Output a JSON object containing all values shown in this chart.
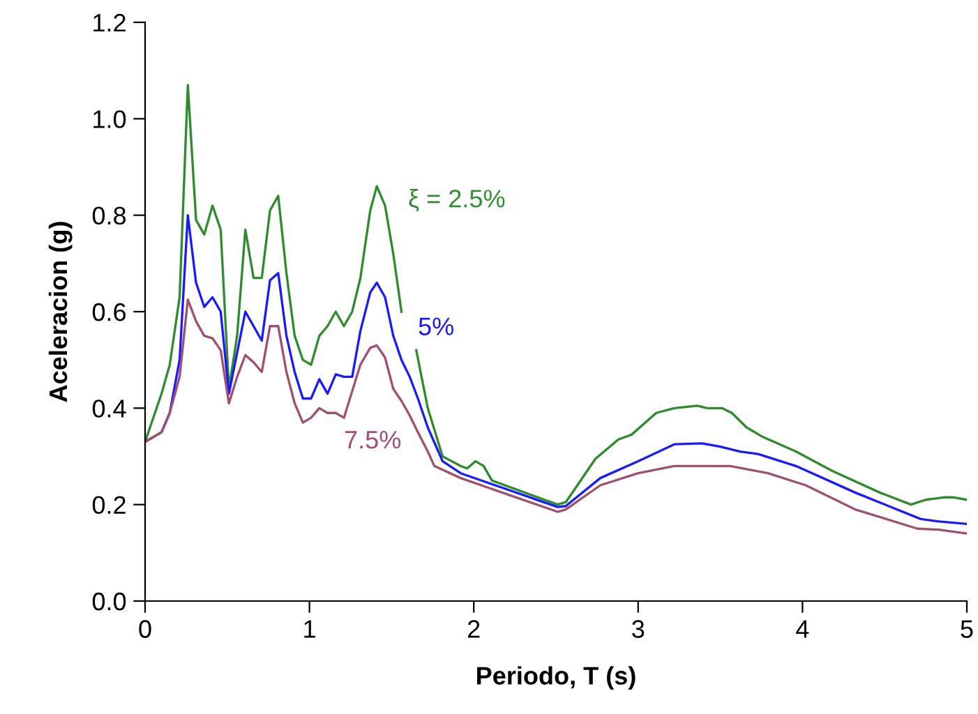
{
  "chart_data": {
    "type": "line",
    "xlabel": "Periodo, T (s)",
    "ylabel": "Aceleracion (g)",
    "xlim": [
      0,
      5
    ],
    "ylim": [
      0,
      1.2
    ],
    "xticks": [
      0,
      1,
      2,
      3,
      4,
      5
    ],
    "yticks": [
      {
        "value": 0,
        "label": "0.0"
      },
      {
        "value": 0.2,
        "label": "0.2"
      },
      {
        "value": 0.4,
        "label": "0.4"
      },
      {
        "value": 0.6,
        "label": "0.6"
      },
      {
        "value": 0.8,
        "label": "0.8"
      },
      {
        "value": 1.0,
        "label": "1.0"
      },
      {
        "value": 1.2,
        "label": "1.2"
      }
    ],
    "grid": false,
    "legend": false,
    "marker": "none",
    "line_style": "solid",
    "series": [
      {
        "name": "ξ = 2.5%",
        "color": "#2e8b2e",
        "x": [
          0,
          0.1,
          0.15,
          0.21,
          0.26,
          0.31,
          0.36,
          0.41,
          0.46,
          0.51,
          0.56,
          0.61,
          0.66,
          0.71,
          0.76,
          0.81,
          0.86,
          0.91,
          0.96,
          1.01,
          1.06,
          1.11,
          1.16,
          1.21,
          1.26,
          1.31,
          1.37,
          1.41,
          1.46,
          1.51,
          1.56,
          1.6,
          1.65,
          1.72,
          1.81,
          1.92,
          1.96,
          2.01,
          2.06,
          2.11,
          2.51,
          2.56,
          2.74,
          2.88,
          2.96,
          3.11,
          3.22,
          3.36,
          3.42,
          3.51,
          3.57,
          3.66,
          3.76,
          3.96,
          4.18,
          4.47,
          4.66,
          4.75,
          4.86,
          4.92,
          5.0
        ],
        "values": [
          0.33,
          0.43,
          0.49,
          0.63,
          1.07,
          0.79,
          0.76,
          0.82,
          0.77,
          0.44,
          0.55,
          0.77,
          0.67,
          0.67,
          0.81,
          0.84,
          0.68,
          0.55,
          0.5,
          0.49,
          0.55,
          0.57,
          0.6,
          0.57,
          0.6,
          0.67,
          0.81,
          0.86,
          0.82,
          0.72,
          0.6,
          null,
          0.52,
          0.4,
          0.3,
          0.28,
          0.275,
          0.29,
          0.28,
          0.25,
          0.2,
          0.205,
          0.295,
          0.335,
          0.345,
          0.39,
          0.4,
          0.405,
          0.4,
          0.4,
          0.39,
          0.36,
          0.34,
          0.31,
          0.27,
          0.225,
          0.2,
          0.21,
          0.215,
          0.215,
          0.21
        ]
      },
      {
        "name": "5%",
        "color": "#1a1aff",
        "x": [
          0,
          0.1,
          0.15,
          0.21,
          0.26,
          0.31,
          0.36,
          0.41,
          0.46,
          0.51,
          0.56,
          0.61,
          0.66,
          0.71,
          0.76,
          0.81,
          0.86,
          0.91,
          0.96,
          1.01,
          1.06,
          1.11,
          1.16,
          1.21,
          1.26,
          1.31,
          1.37,
          1.41,
          1.46,
          1.51,
          1.56,
          1.61,
          1.66,
          1.72,
          1.81,
          1.92,
          2.51,
          2.56,
          2.77,
          3.0,
          3.22,
          3.39,
          3.5,
          3.62,
          3.73,
          3.96,
          4.32,
          4.72,
          4.83,
          5.0
        ],
        "values": [
          0.33,
          0.35,
          0.39,
          0.5,
          0.8,
          0.66,
          0.61,
          0.63,
          0.6,
          0.43,
          0.515,
          0.6,
          0.57,
          0.54,
          0.665,
          0.68,
          0.55,
          0.475,
          0.42,
          0.42,
          0.46,
          0.43,
          0.47,
          0.465,
          0.465,
          0.56,
          0.64,
          0.66,
          0.63,
          0.55,
          0.5,
          0.465,
          0.42,
          0.36,
          0.29,
          0.265,
          0.195,
          0.197,
          0.255,
          0.29,
          0.325,
          0.327,
          0.32,
          0.31,
          0.305,
          0.28,
          0.225,
          0.17,
          0.165,
          0.16
        ]
      },
      {
        "name": "7.5%",
        "color": "#a0506e",
        "x": [
          0,
          0.1,
          0.15,
          0.21,
          0.26,
          0.31,
          0.36,
          0.41,
          0.46,
          0.51,
          0.56,
          0.61,
          0.66,
          0.71,
          0.76,
          0.81,
          0.86,
          0.91,
          0.96,
          1.01,
          1.06,
          1.11,
          1.16,
          1.21,
          1.26,
          1.31,
          1.37,
          1.41,
          1.46,
          1.51,
          1.56,
          1.61,
          1.66,
          1.72,
          1.76,
          1.92,
          2.51,
          2.56,
          2.77,
          3.0,
          3.22,
          3.56,
          3.79,
          4.02,
          4.32,
          4.7,
          4.83,
          5.0
        ],
        "values": [
          0.33,
          0.35,
          0.39,
          0.465,
          0.625,
          0.58,
          0.55,
          0.545,
          0.52,
          0.41,
          0.465,
          0.51,
          0.495,
          0.475,
          0.57,
          0.57,
          0.475,
          0.41,
          0.37,
          0.38,
          0.4,
          0.39,
          0.39,
          0.38,
          0.435,
          0.49,
          0.525,
          0.53,
          0.505,
          0.44,
          0.415,
          0.385,
          0.35,
          0.31,
          0.28,
          0.255,
          0.185,
          0.19,
          0.24,
          0.265,
          0.28,
          0.28,
          0.265,
          0.24,
          0.19,
          0.15,
          0.148,
          0.14
        ]
      }
    ]
  }
}
